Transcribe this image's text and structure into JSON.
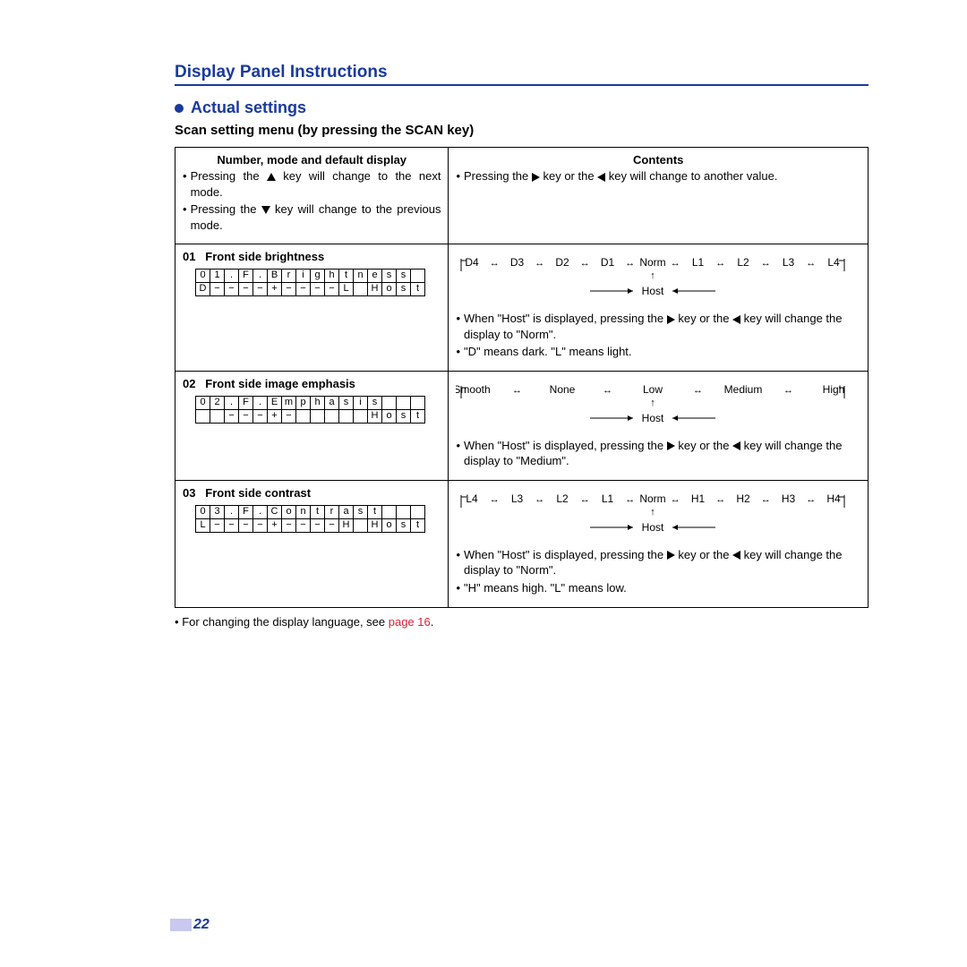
{
  "colors": {
    "accent": "#1a3a9c",
    "link": "#d23",
    "pagenum_bg": "#c8c8f0",
    "text": "#000000",
    "background": "#ffffff"
  },
  "header": {
    "doc_title": "Display Panel Instructions",
    "section_title": "Actual settings",
    "subheading": "Scan setting menu (by pressing the SCAN key)"
  },
  "table": {
    "header_row": {
      "left_title": "Number, mode and default display",
      "left_bullets": [
        "Pressing the ▲ key will change to the next mode.",
        "Pressing the ▼ key will change to the previous mode."
      ],
      "right_title": "Contents",
      "right_bullets": [
        "Pressing the ► key or the ◄ key will change to another value."
      ]
    },
    "rows": [
      {
        "num": "01",
        "title": "Front side brightness",
        "lcd_line1": [
          "0",
          "1",
          ".",
          " F",
          ".",
          " B",
          "r",
          "i",
          "g",
          "h",
          "t",
          "n",
          "e",
          "s",
          "s",
          " "
        ],
        "lcd_line2": [
          "D",
          "−",
          "−",
          "−",
          "−",
          "+",
          "−",
          "−",
          "−",
          "−",
          "L",
          " ",
          "H",
          "o",
          "s",
          "t"
        ],
        "sequence": [
          "D4",
          "D3",
          "D2",
          "D1",
          "Norm",
          "L1",
          "L2",
          "L3",
          "L4"
        ],
        "host_label": "Host",
        "bullets": [
          "When \"Host\" is displayed, pressing the ► key or the ◄ key will change the display to \"Norm\".",
          "\"D\" means dark. \"L\" means light."
        ]
      },
      {
        "num": "02",
        "title": "Front side image emphasis",
        "lcd_line1": [
          "0",
          "2",
          ".",
          " F",
          ".",
          " E",
          "m",
          "p",
          "h",
          "a",
          "s",
          "i",
          "s",
          " ",
          " ",
          " "
        ],
        "lcd_line2": [
          " ",
          " ",
          "−",
          "−",
          "−",
          "+",
          "−",
          " ",
          " ",
          " ",
          " ",
          " ",
          "H",
          "o",
          "s",
          "t"
        ],
        "sequence": [
          "Smooth",
          "None",
          "Low",
          "Medium",
          "High"
        ],
        "host_label": "Host",
        "bullets": [
          "When \"Host\" is displayed, pressing the ► key or the ◄ key will change the display to \"Medium\"."
        ]
      },
      {
        "num": "03",
        "title": "Front side contrast",
        "lcd_line1": [
          "0",
          "3",
          ".",
          " F",
          ".",
          " C",
          "o",
          "n",
          "t",
          "r",
          "a",
          "s",
          "t",
          " ",
          " ",
          " "
        ],
        "lcd_line2": [
          "L",
          "−",
          "−",
          "−",
          "−",
          "+",
          "−",
          "−",
          "−",
          "−",
          "H",
          " ",
          "H",
          "o",
          "s",
          "t"
        ],
        "sequence": [
          "L4",
          "L3",
          "L2",
          "L1",
          "Norm",
          "H1",
          "H2",
          "H3",
          "H4"
        ],
        "host_label": "Host",
        "bullets": [
          "When \"Host\" is displayed, pressing the ► key or the ◄ key will change the display to \"Norm\".",
          "\"H\" means high. \"L\" means low."
        ]
      }
    ]
  },
  "footnote": {
    "prefix": "For changing the display language, see ",
    "link": "page 16",
    "suffix": "."
  },
  "page_number": "22"
}
